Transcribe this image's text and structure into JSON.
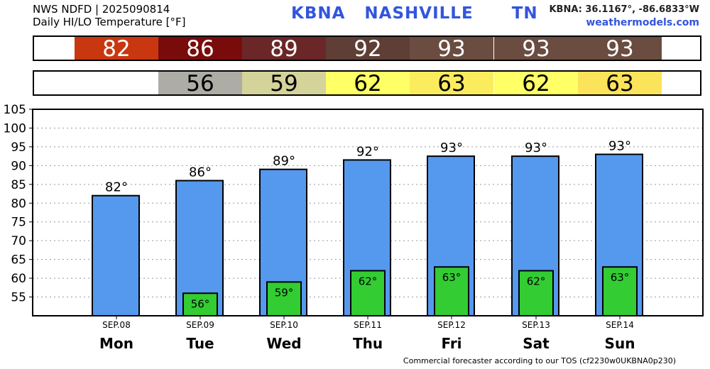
{
  "header": {
    "source": "NWS NDFD | 2025090814",
    "subtitle": "Daily HI/LO Temperature [°F]",
    "station": "KBNA   NASHVILLE      TN",
    "coords": "KBNA: 36.1167°, -86.6833°W",
    "site": "weathermodels.com"
  },
  "footer": "Commercial forecaster according to our TOS (cf2230w0UKBNA0p230)",
  "highs": [
    {
      "value": "82",
      "bg": "#c93710",
      "fg": "#ffffff"
    },
    {
      "value": "86",
      "bg": "#7a0b0b",
      "fg": "#ffffff"
    },
    {
      "value": "89",
      "bg": "#6b2727",
      "fg": "#ffffff"
    },
    {
      "value": "92",
      "bg": "#5e3e35",
      "fg": "#ffffff"
    },
    {
      "value": "93",
      "bg": "#6a4c40",
      "fg": "#ffffff"
    },
    {
      "value": "93",
      "bg": "#6a4c40",
      "fg": "#ffffff"
    },
    {
      "value": "93",
      "bg": "#6a4c40",
      "fg": "#ffffff"
    }
  ],
  "lows": [
    {
      "value": "",
      "bg": "#ffffff",
      "fg": "#000000"
    },
    {
      "value": "56",
      "bg": "#adada6",
      "fg": "#000000"
    },
    {
      "value": "59",
      "bg": "#d3d39a",
      "fg": "#000000"
    },
    {
      "value": "62",
      "bg": "#ffff66",
      "fg": "#000000"
    },
    {
      "value": "63",
      "bg": "#fbec5e",
      "fg": "#000000"
    },
    {
      "value": "62",
      "bg": "#ffff66",
      "fg": "#000000"
    },
    {
      "value": "63",
      "bg": "#fbe35a",
      "fg": "#000000"
    }
  ],
  "chart_data": {
    "type": "bar",
    "categories": [
      "SEP.08",
      "SEP.09",
      "SEP.10",
      "SEP.11",
      "SEP.12",
      "SEP.13",
      "SEP.14"
    ],
    "days": [
      "Mon",
      "Tue",
      "Wed",
      "Thu",
      "Fri",
      "Sat",
      "Sun"
    ],
    "series": [
      {
        "name": "High",
        "values": [
          82,
          86,
          89,
          92,
          93,
          93,
          93
        ],
        "labels": [
          "82°",
          "86°",
          "89°",
          "92°",
          "93°",
          "93°",
          "93°"
        ],
        "color": "#5599ee"
      },
      {
        "name": "Low",
        "values": [
          null,
          56,
          59,
          62,
          63,
          62,
          63
        ],
        "labels": [
          "",
          "56°",
          "59°",
          "62°",
          "63°",
          "62°",
          "63°"
        ],
        "color": "#33cc33"
      }
    ],
    "bar_tops": [
      82,
      86,
      89,
      91.5,
      92.5,
      92.5,
      93
    ],
    "ylim": [
      50,
      105
    ],
    "yticks": [
      55,
      60,
      65,
      70,
      75,
      80,
      85,
      90,
      95,
      100,
      105
    ],
    "grid": true
  }
}
